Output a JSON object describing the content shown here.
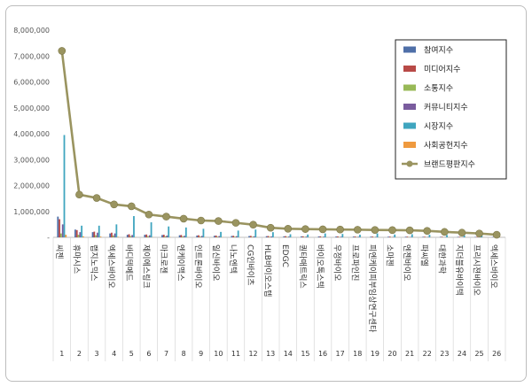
{
  "chart_data": {
    "type": "bar",
    "title": "",
    "xlabel": "",
    "ylabel": "",
    "ylim": [
      0,
      8000000
    ],
    "yticks": [
      "-",
      "1,000,000",
      "2,000,000",
      "3,000,000",
      "4,000,000",
      "5,000,000",
      "6,000,000",
      "7,000,000",
      "8,000,000"
    ],
    "grid": false,
    "legend": "right",
    "numbers": [
      "1",
      "2",
      "3",
      "4",
      "5",
      "6",
      "7",
      "8",
      "9",
      "10",
      "11",
      "12",
      "13",
      "14",
      "15",
      "16",
      "17",
      "18",
      "19",
      "20",
      "21",
      "22",
      "23",
      "24",
      "25",
      "26"
    ],
    "categories": [
      "씨젠",
      "휴마시스",
      "랩지노믹스",
      "엑세스바이오",
      "바디텍메드",
      "제이에스링크",
      "마크로젠",
      "엔케이맥스",
      "인트론바이오",
      "일신바이오",
      "나노엔텍",
      "CG인바이츠",
      "HLB바이오스텝",
      "EDGC",
      "퀀타매트릭스",
      "바이오톡스텍",
      "우정바이오",
      "프로파인진",
      "피엔케이피부임상연구센타",
      "소마젠",
      "엔젠바이오",
      "파씨엘",
      "대한과학",
      "지더블유바이텍",
      "프리시젼바이오",
      "엑세스바이오"
    ],
    "series": [
      {
        "name": "참여지수",
        "color": "#4f6fa8",
        "values": [
          800000,
          300000,
          200000,
          150000,
          100000,
          100000,
          90000,
          80000,
          70000,
          60000,
          55000,
          50000,
          45000,
          40000,
          38000,
          35000,
          33000,
          30000,
          28000,
          26000,
          24000,
          22000,
          20000,
          18000,
          16000,
          14000
        ]
      },
      {
        "name": "미디어지수",
        "color": "#b84a47",
        "values": [
          700000,
          280000,
          220000,
          180000,
          120000,
          110000,
          100000,
          90000,
          80000,
          70000,
          60000,
          55000,
          50000,
          45000,
          40000,
          38000,
          35000,
          32000,
          30000,
          28000,
          26000,
          24000,
          22000,
          20000,
          18000,
          16000
        ]
      },
      {
        "name": "소통지수",
        "color": "#98b957",
        "values": [
          150000,
          100000,
          80000,
          70000,
          50000,
          45000,
          40000,
          35000,
          30000,
          28000,
          26000,
          24000,
          22000,
          20000,
          18000,
          16000,
          15000,
          14000,
          13000,
          12000,
          11000,
          10000,
          9000,
          8000,
          7000,
          6000
        ]
      },
      {
        "name": "커뮤니티지수",
        "color": "#7a5c9e",
        "values": [
          500000,
          200000,
          180000,
          150000,
          90000,
          80000,
          70000,
          60000,
          55000,
          50000,
          45000,
          40000,
          35000,
          30000,
          28000,
          26000,
          24000,
          22000,
          20000,
          18000,
          16000,
          14000,
          12000,
          10000,
          9000,
          8000
        ]
      },
      {
        "name": "시장지수",
        "color": "#3fa5bf",
        "values": [
          3950000,
          450000,
          450000,
          500000,
          820000,
          580000,
          420000,
          380000,
          330000,
          210000,
          260000,
          300000,
          200000,
          120000,
          110000,
          150000,
          130000,
          100000,
          150000,
          110000,
          120000,
          100000,
          90000,
          80000,
          70000,
          60000
        ]
      },
      {
        "name": "사회공헌지수",
        "color": "#ef9a3f",
        "values": [
          100000,
          40000,
          30000,
          20000,
          10000,
          10000,
          10000,
          10000,
          10000,
          10000,
          5000,
          5000,
          5000,
          5000,
          5000,
          5000,
          5000,
          5000,
          5000,
          5000,
          5000,
          5000,
          5000,
          5000,
          5000,
          5000
        ]
      },
      {
        "name": "브랜드평판지수",
        "color": "#9a9460",
        "type": "line",
        "values": [
          7200000,
          1650000,
          1520000,
          1270000,
          1200000,
          880000,
          800000,
          720000,
          650000,
          630000,
          560000,
          490000,
          370000,
          330000,
          320000,
          310000,
          300000,
          295000,
          285000,
          280000,
          270000,
          250000,
          210000,
          180000,
          150000,
          100000
        ]
      }
    ]
  }
}
